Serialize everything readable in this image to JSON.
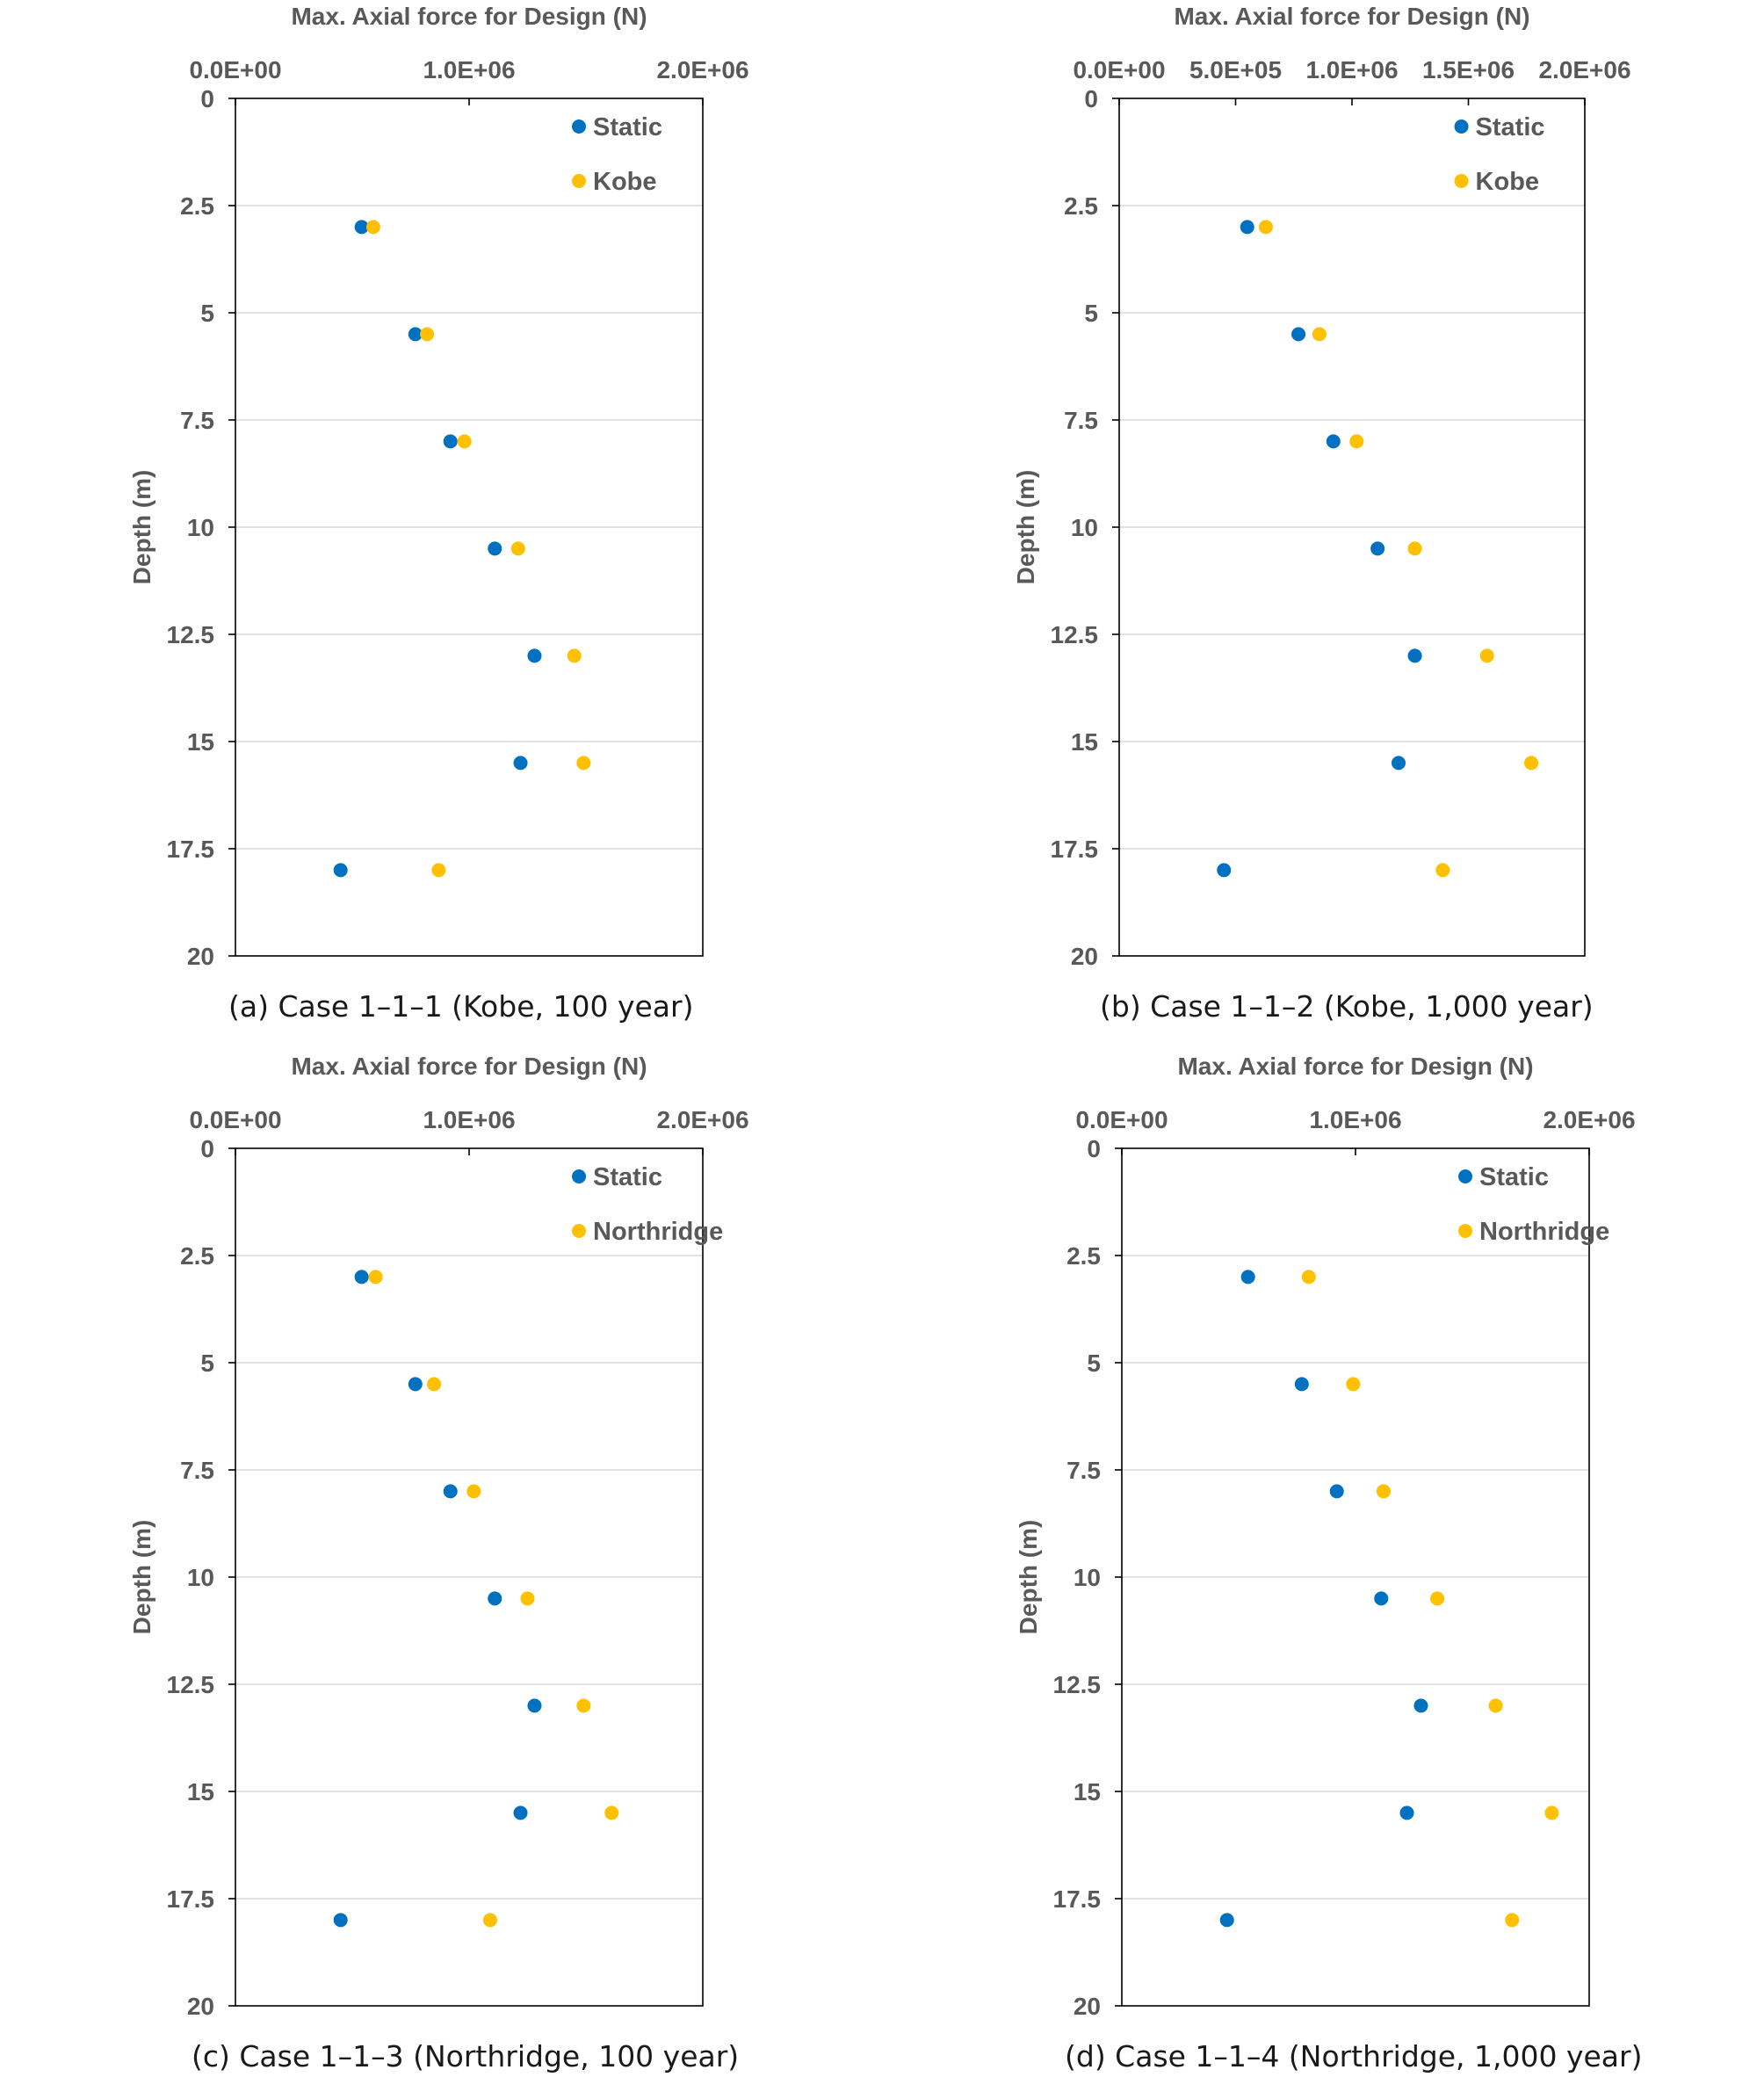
{
  "chart_data": [
    {
      "type": "scatter",
      "panel_id": "a",
      "xlabel": "Max. Axial force for Design (N)",
      "ylabel": "Depth (m)",
      "x_axis_position": "top",
      "y_axis_inverted": true,
      "xlim": [
        0,
        2000000
      ],
      "ylim": [
        0,
        20
      ],
      "x_ticks": [
        0,
        1000000,
        2000000
      ],
      "x_tick_labels": [
        "0.0E+00",
        "1.0E+06",
        "2.0E+06"
      ],
      "y_ticks": [
        0,
        2.5,
        5,
        7.5,
        10,
        12.5,
        15,
        17.5,
        20
      ],
      "y_tick_labels": [
        "0",
        "2.5",
        "5",
        "7.5",
        "10",
        "12.5",
        "15",
        "17.5",
        "20"
      ],
      "grid": "horizontal",
      "legend_position": "top-right",
      "caption": "(a) Case 1–1–1 (Kobe, 100 year)",
      "series": [
        {
          "name": "Static",
          "color": "#0070C0",
          "x": [
            540000,
            770000,
            920000,
            1110000,
            1280000,
            1220000,
            450000
          ],
          "y": [
            3,
            5.5,
            8,
            10.5,
            13,
            15.5,
            18
          ]
        },
        {
          "name": "Kobe",
          "color": "#FFC000",
          "x": [
            590000,
            820000,
            980000,
            1210000,
            1450000,
            1490000,
            870000
          ],
          "y": [
            3,
            5.5,
            8,
            10.5,
            13,
            15.5,
            18
          ]
        }
      ]
    },
    {
      "type": "scatter",
      "panel_id": "b",
      "xlabel": "Max. Axial force for Design (N)",
      "ylabel": "Depth (m)",
      "x_axis_position": "top",
      "y_axis_inverted": true,
      "xlim": [
        0,
        2000000
      ],
      "ylim": [
        0,
        20
      ],
      "x_ticks": [
        0,
        500000,
        1000000,
        1500000,
        2000000
      ],
      "x_tick_labels": [
        "0.0E+00",
        "5.0E+05",
        "1.0E+06",
        "1.5E+06",
        "2.0E+06"
      ],
      "y_ticks": [
        0,
        2.5,
        5,
        7.5,
        10,
        12.5,
        15,
        17.5,
        20
      ],
      "y_tick_labels": [
        "0",
        "2.5",
        "5",
        "7.5",
        "10",
        "12.5",
        "15",
        "17.5",
        "20"
      ],
      "grid": "horizontal",
      "legend_position": "top-right",
      "caption": "(b) Case 1–1–2 (Kobe, 1,000 year)",
      "series": [
        {
          "name": "Static",
          "color": "#0070C0",
          "x": [
            550000,
            770000,
            920000,
            1110000,
            1270000,
            1200000,
            450000
          ],
          "y": [
            3,
            5.5,
            8,
            10.5,
            13,
            15.5,
            18
          ]
        },
        {
          "name": "Kobe",
          "color": "#FFC000",
          "x": [
            630000,
            860000,
            1020000,
            1270000,
            1580000,
            1770000,
            1390000
          ],
          "y": [
            3,
            5.5,
            8,
            10.5,
            13,
            15.5,
            18
          ]
        }
      ]
    },
    {
      "type": "scatter",
      "panel_id": "c",
      "xlabel": "Max. Axial force for Design (N)",
      "ylabel": "Depth (m)",
      "x_axis_position": "top",
      "y_axis_inverted": true,
      "xlim": [
        0,
        2000000
      ],
      "ylim": [
        0,
        20
      ],
      "x_ticks": [
        0,
        1000000,
        2000000
      ],
      "x_tick_labels": [
        "0.0E+00",
        "1.0E+06",
        "2.0E+06"
      ],
      "y_ticks": [
        0,
        2.5,
        5,
        7.5,
        10,
        12.5,
        15,
        17.5,
        20
      ],
      "y_tick_labels": [
        "0",
        "2.5",
        "5",
        "7.5",
        "10",
        "12.5",
        "15",
        "17.5",
        "20"
      ],
      "grid": "horizontal",
      "legend_position": "top-right",
      "caption": "(c) Case 1–1–3 (Northridge, 100 year)",
      "series": [
        {
          "name": "Static",
          "color": "#0070C0",
          "x": [
            540000,
            770000,
            920000,
            1110000,
            1280000,
            1220000,
            450000
          ],
          "y": [
            3,
            5.5,
            8,
            10.5,
            13,
            15.5,
            18
          ]
        },
        {
          "name": "Northridge",
          "color": "#FFC000",
          "x": [
            600000,
            850000,
            1020000,
            1250000,
            1490000,
            1610000,
            1090000
          ],
          "y": [
            3,
            5.5,
            8,
            10.5,
            13,
            15.5,
            18
          ]
        }
      ]
    },
    {
      "type": "scatter",
      "panel_id": "d",
      "xlabel": "Max. Axial force for Design (N)",
      "ylabel": "Depth (m)",
      "x_axis_position": "top",
      "y_axis_inverted": true,
      "xlim": [
        0,
        2000000
      ],
      "ylim": [
        0,
        20
      ],
      "x_ticks": [
        0,
        1000000,
        2000000
      ],
      "x_tick_labels": [
        "0.0E+00",
        "1.0E+06",
        "2.0E+06"
      ],
      "y_ticks": [
        0,
        2.5,
        5,
        7.5,
        10,
        12.5,
        15,
        17.5,
        20
      ],
      "y_tick_labels": [
        "0",
        "2.5",
        "5",
        "7.5",
        "10",
        "12.5",
        "15",
        "17.5",
        "20"
      ],
      "grid": "horizontal",
      "legend_position": "top-right",
      "caption": "(d) Case 1–1–4 (Northridge, 1,000 year)",
      "series": [
        {
          "name": "Static",
          "color": "#0070C0",
          "x": [
            540000,
            770000,
            920000,
            1110000,
            1280000,
            1220000,
            450000
          ],
          "y": [
            3,
            5.5,
            8,
            10.5,
            13,
            15.5,
            18
          ]
        },
        {
          "name": "Northridge",
          "color": "#FFC000",
          "x": [
            800000,
            990000,
            1120000,
            1350000,
            1600000,
            1840000,
            1670000
          ],
          "y": [
            3,
            5.5,
            8,
            10.5,
            13,
            15.5,
            18
          ]
        }
      ]
    }
  ]
}
